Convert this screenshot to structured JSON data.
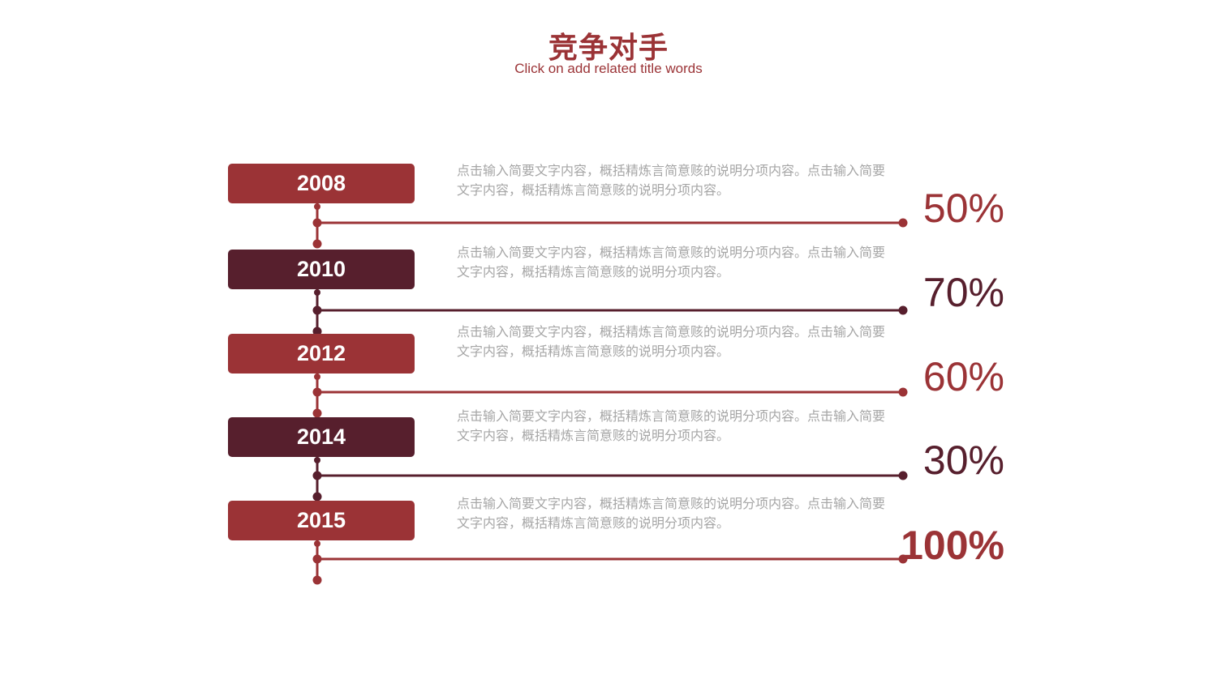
{
  "header": {
    "title": "竞争对手",
    "subtitle": "Click on add related title words"
  },
  "colors": {
    "primary": "#9b3336",
    "dark": "#571f2d",
    "text_gray": "#a6a6a6"
  },
  "rows": [
    {
      "year": "2008",
      "text": "点击输入简要文字内容，概括精炼言简意赅的说明分项内容。点击输入简要文字内容，概括精炼言简意赅的说明分项内容。",
      "percent": "50%",
      "value": 50,
      "color": "#9b3336",
      "bold": false
    },
    {
      "year": "2010",
      "text": "点击输入简要文字内容，概括精炼言简意赅的说明分项内容。点击输入简要文字内容，概括精炼言简意赅的说明分项内容。",
      "percent": "70%",
      "value": 70,
      "color": "#571f2d",
      "bold": false
    },
    {
      "year": "2012",
      "text": "点击输入简要文字内容，概括精炼言简意赅的说明分项内容。点击输入简要文字内容，概括精炼言简意赅的说明分项内容。",
      "percent": "60%",
      "value": 60,
      "color": "#9b3336",
      "bold": false
    },
    {
      "year": "2014",
      "text": "点击输入简要文字内容，概括精炼言简意赅的说明分项内容。点击输入简要文字内容，概括精炼言简意赅的说明分项内容。",
      "percent": "30%",
      "value": 30,
      "color": "#571f2d",
      "bold": false
    },
    {
      "year": "2015",
      "text": "点击输入简要文字内容，概括精炼言简意赅的说明分项内容。点击输入简要文字内容，概括精炼言简意赅的说明分项内容。",
      "percent": "100%",
      "value": 100,
      "color": "#9b3336",
      "bold": true
    }
  ]
}
